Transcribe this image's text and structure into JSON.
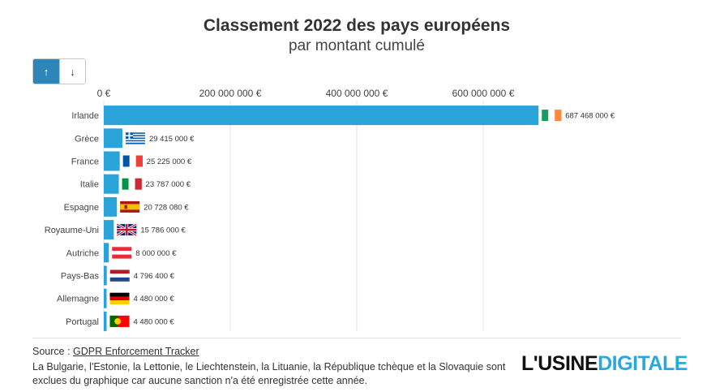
{
  "header": {
    "title": "Classement 2022 des pays européens",
    "subtitle": "par montant cumulé"
  },
  "sort": {
    "asc_icon": "arrow-up-icon",
    "desc_icon": "arrow-down-icon",
    "asc_label": "↑",
    "desc_label": "↓"
  },
  "chart_data": {
    "type": "bar",
    "orientation": "horizontal",
    "categories": [
      "Irlande",
      "Grèce",
      "France",
      "Italie",
      "Espagne",
      "Royaume-Uni",
      "Autriche",
      "Pays-Bas",
      "Allemagne",
      "Portugal"
    ],
    "values": [
      687468000,
      29415000,
      25225000,
      23787000,
      20728080,
      15786000,
      8000000,
      4796400,
      4480000,
      4480000
    ],
    "data_labels": [
      "687 468 000 €",
      "29 415 000 €",
      "25 225 000 €",
      "23 787 000 €",
      "20 728 080 €",
      "15 786 000 €",
      "8 000 000 €",
      "4 796 400 €",
      "4 480 000 €",
      "4 480 000 €"
    ],
    "flags": [
      "ie",
      "gr",
      "fr",
      "it",
      "es",
      "gb",
      "at",
      "nl",
      "de",
      "pt"
    ],
    "x_ticks": [
      0,
      200000000,
      400000000,
      600000000
    ],
    "x_tick_labels": [
      "0 €",
      "200 000 000 €",
      "400 000 000 €",
      "600 000 000 €"
    ],
    "xlim": [
      0,
      700000000
    ],
    "bar_color": "#29a3d8",
    "grid": true
  },
  "footer": {
    "source_prefix": "Source : ",
    "source_link": "GDPR Enforcement Tracker",
    "note": "La Bulgarie, l'Estonie, la Lettonie, le Liechtenstein, la Lituanie, la République tchèque et la Slovaquie sont exclues du graphique car aucune sanction n'a été enregistrée cette année.",
    "logo_part1": "L'USINE",
    "logo_part2": "DIGITALE",
    "logo_accent": "#29a8df"
  }
}
